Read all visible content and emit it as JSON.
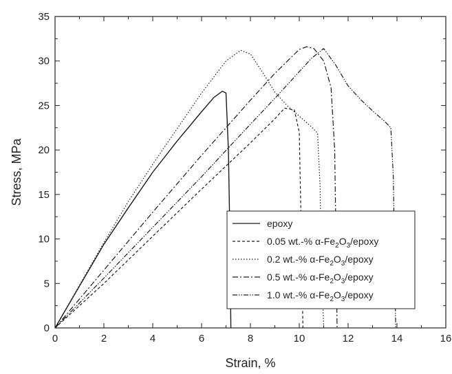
{
  "chart_data": {
    "type": "line",
    "title": "",
    "xlabel": "Strain, %",
    "ylabel": "Stress, MPa",
    "xlim": [
      0,
      16
    ],
    "ylim": [
      0,
      35
    ],
    "xticks": [
      "0",
      "2",
      "4",
      "6",
      "8",
      "10",
      "12",
      "14",
      "16"
    ],
    "yticks": [
      "0",
      "5",
      "10",
      "15",
      "20",
      "25",
      "30",
      "35"
    ],
    "grid": false,
    "legend_position": "bottom-right",
    "series": [
      {
        "name": "epoxy",
        "label_prefix": "epoxy",
        "label_suffix": "",
        "dash": "",
        "x": [
          0,
          1,
          2,
          3,
          4,
          5,
          6,
          6.5,
          6.85,
          7.0,
          7.1,
          7.15,
          7.2
        ],
        "y": [
          0,
          4.7,
          9.4,
          13.5,
          17.5,
          21.0,
          24.3,
          25.9,
          26.6,
          26.4,
          20.0,
          12.0,
          0
        ]
      },
      {
        "name": "0.05 wt.-% α-Fe2O3/epoxy",
        "label_prefix": "0.05 wt.-%  α-Fe",
        "label_suffix": "/epoxy",
        "dash": "4,3",
        "x": [
          0,
          2,
          4,
          6,
          8,
          9.0,
          9.4,
          9.8,
          10.0,
          10.05,
          10.1,
          10.15
        ],
        "y": [
          0,
          5.0,
          10.3,
          15.6,
          20.8,
          23.5,
          24.7,
          24.5,
          22.0,
          15.0,
          8.0,
          0
        ]
      },
      {
        "name": "0.2 wt.-% α-Fe2O3/epoxy",
        "label_prefix": "0.2 wt.-%  α-Fe",
        "label_suffix": "/epoxy",
        "dash": "1.5,2.5",
        "x": [
          0,
          1,
          2,
          3,
          4,
          5,
          6,
          7,
          7.6,
          8.0,
          8.5,
          9.0,
          9.5,
          10.0,
          10.5,
          10.75,
          10.85,
          10.9,
          11.0
        ],
        "y": [
          0,
          4.8,
          9.6,
          14.2,
          18.4,
          22.4,
          26.4,
          30.0,
          31.2,
          30.8,
          28.7,
          26.5,
          25.0,
          23.8,
          22.6,
          21.9,
          16.0,
          8.0,
          0
        ]
      },
      {
        "name": "0.5 wt.-% α-Fe2O3/epoxy",
        "label_prefix": "0.5 wt.-%  α-Fe",
        "label_suffix": "/epoxy",
        "dash": "8,3,2,3",
        "x": [
          0,
          2,
          4,
          6,
          8,
          9,
          10,
          10.3,
          10.6,
          11.0,
          11.3,
          11.45,
          11.5,
          11.55
        ],
        "y": [
          0,
          6.5,
          13.0,
          19.4,
          25.6,
          28.6,
          31.3,
          31.6,
          31.4,
          30.0,
          27.0,
          20.0,
          10.0,
          0
        ]
      },
      {
        "name": "1.0 wt.-% α-Fe2O3/epoxy",
        "label_prefix": "1.0 wt.-%  α-Fe",
        "label_suffix": "/epoxy",
        "dash": "7,2,1.5,2,1.5,2",
        "x": [
          0,
          2,
          4,
          6,
          8,
          9,
          10,
          10.5,
          11.0,
          11.5,
          12.0,
          12.5,
          13.0,
          13.5,
          13.75,
          13.85,
          13.9,
          13.95
        ],
        "y": [
          0,
          5.6,
          11.3,
          17.0,
          22.9,
          25.8,
          28.8,
          30.3,
          31.4,
          29.5,
          27.2,
          25.7,
          24.4,
          23.2,
          22.5,
          17.0,
          8.0,
          0
        ]
      }
    ]
  }
}
